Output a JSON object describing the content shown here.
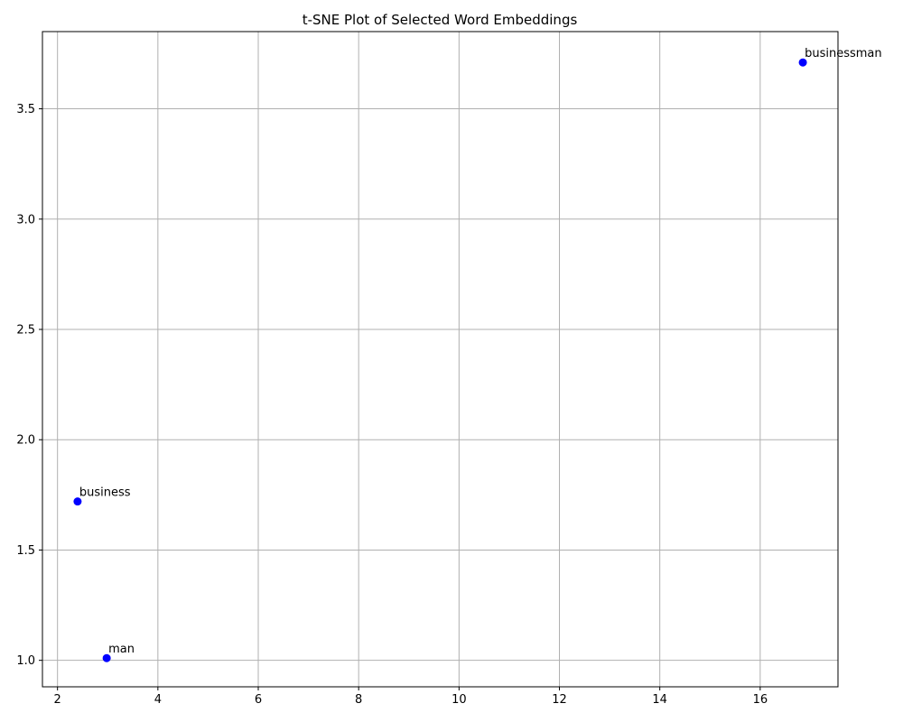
{
  "chart_data": {
    "type": "scatter",
    "title": "t-SNE Plot of Selected Word Embeddings",
    "xlabel": "",
    "ylabel": "",
    "xlim": [
      1.7,
      17.55
    ],
    "ylim": [
      0.88,
      3.85
    ],
    "xticks": [
      2,
      4,
      6,
      8,
      10,
      12,
      14,
      16
    ],
    "yticks": [
      1.0,
      1.5,
      2.0,
      2.5,
      3.0,
      3.5
    ],
    "ytick_labels": [
      "1.0",
      "1.5",
      "2.0",
      "2.5",
      "3.0",
      "3.5"
    ],
    "grid": true,
    "marker_color": "#0000ff",
    "points": [
      {
        "label": "businessman",
        "x": 16.85,
        "y": 3.71
      },
      {
        "label": "business",
        "x": 2.4,
        "y": 1.72
      },
      {
        "label": "man",
        "x": 2.98,
        "y": 1.01
      }
    ]
  }
}
